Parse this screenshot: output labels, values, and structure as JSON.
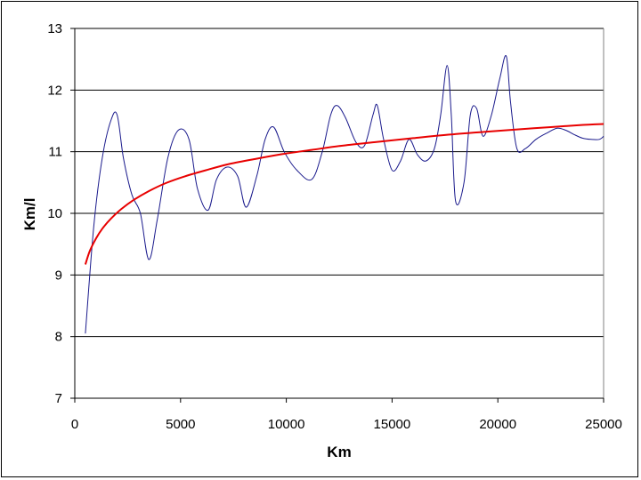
{
  "chart_data": {
    "type": "line",
    "title": "",
    "xlabel": "Km",
    "ylabel": "Km/l",
    "xlim": [
      0,
      25000
    ],
    "ylim": [
      7,
      13
    ],
    "x_ticks": [
      0,
      5000,
      10000,
      15000,
      20000,
      25000
    ],
    "y_ticks": [
      7,
      8,
      9,
      10,
      11,
      12,
      13
    ],
    "grid": "horizontal",
    "legend": "none",
    "series": [
      {
        "kind": "measured",
        "color": "#1a1a8c",
        "x": [
          500,
          900,
          1300,
          1700,
          2000,
          2300,
          2700,
          3100,
          3500,
          3900,
          4400,
          4900,
          5400,
          5800,
          6300,
          6700,
          7200,
          7700,
          8100,
          8600,
          9000,
          9400,
          9900,
          10500,
          11200,
          11700,
          12100,
          12400,
          12800,
          13300,
          13700,
          14100,
          14300,
          14600,
          15000,
          15400,
          15800,
          16200,
          16600,
          17000,
          17300,
          17600,
          17800,
          18000,
          18400,
          18700,
          19000,
          19300,
          19700,
          20100,
          20400,
          20600,
          20900,
          21300,
          21800,
          22300,
          22800,
          23200,
          23600,
          24000,
          24400,
          24800,
          25000
        ],
        "y": [
          8.05,
          9.8,
          10.9,
          11.5,
          11.6,
          10.9,
          10.3,
          10.0,
          9.25,
          9.9,
          10.9,
          11.35,
          11.2,
          10.4,
          10.05,
          10.55,
          10.75,
          10.6,
          10.1,
          10.6,
          11.2,
          11.4,
          11.0,
          10.7,
          10.55,
          11.0,
          11.6,
          11.75,
          11.55,
          11.15,
          11.1,
          11.6,
          11.75,
          11.2,
          10.7,
          10.85,
          11.2,
          10.95,
          10.85,
          11.05,
          11.6,
          12.4,
          11.6,
          10.2,
          10.5,
          11.6,
          11.7,
          11.25,
          11.6,
          12.2,
          12.55,
          11.8,
          11.05,
          11.05,
          11.2,
          11.3,
          11.38,
          11.35,
          11.28,
          11.22,
          11.2,
          11.2,
          11.25
        ]
      },
      {
        "kind": "trend",
        "color": "#e80000",
        "x": [
          500,
          700,
          1000,
          1300,
          1700,
          2200,
          2800,
          3500,
          4300,
          5200,
          6200,
          7300,
          8500,
          9800,
          11200,
          12700,
          14300,
          16000,
          17800,
          19700,
          21700,
          23800,
          25000
        ],
        "y": [
          9.17,
          9.38,
          9.59,
          9.75,
          9.91,
          10.07,
          10.22,
          10.36,
          10.49,
          10.6,
          10.7,
          10.8,
          10.88,
          10.96,
          11.03,
          11.1,
          11.16,
          11.22,
          11.28,
          11.33,
          11.38,
          11.43,
          11.45
        ]
      }
    ]
  }
}
